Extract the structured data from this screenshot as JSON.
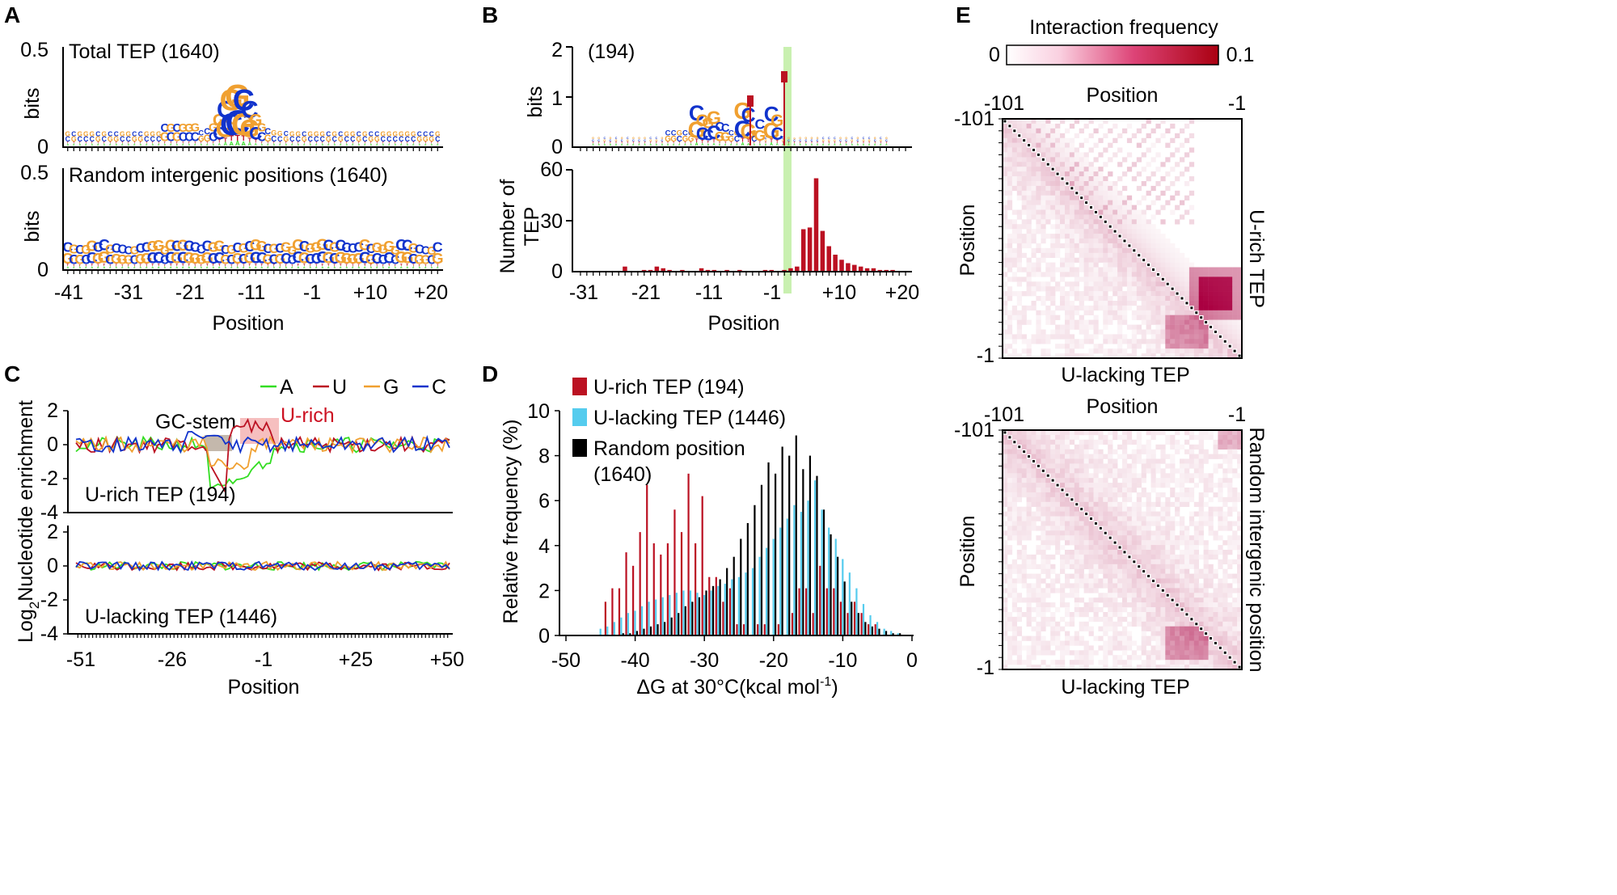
{
  "colors": {
    "A": "#33dd22",
    "U": "#bb1122",
    "G": "#f0a030",
    "C": "#1133cc",
    "green_hl": "#c9f0b0",
    "urich_box": "#f5b4b4",
    "gc_box": "#b0a090",
    "cyan": "#55ccee",
    "black": "#000000",
    "heat_hi": "#aa0011",
    "heat_lo": "#ffffff"
  },
  "chart_data": [
    {
      "panel": "A",
      "type": "sequence-logo",
      "ylabel": "bits",
      "xlabel": "Position",
      "x_ticks": [
        "-41",
        "-31",
        "-21",
        "-11",
        "-1",
        "+10",
        "+20"
      ],
      "subplots": [
        {
          "title": "Total TEP (1640)",
          "y_ticks": [
            "0.5",
            "0"
          ],
          "ylim": [
            0,
            0.5
          ]
        },
        {
          "title": "Random intergenic positions (1640)",
          "y_ticks": [
            "0.5",
            "0"
          ],
          "ylim": [
            0,
            0.5
          ]
        }
      ]
    },
    {
      "panel": "B",
      "type": "bar",
      "xlabel": "Position",
      "x_ticks": [
        "-31",
        "-21",
        "-11",
        "-1",
        "+10",
        "+20"
      ],
      "logo": {
        "title": "(194)",
        "ylabel": "bits",
        "y_ticks": [
          "2",
          "1",
          "0"
        ],
        "ylim": [
          0,
          2
        ]
      },
      "bars": {
        "ylabel_line1": "Number of",
        "ylabel_line2": "TEP",
        "y_ticks": [
          "60",
          "30",
          "0"
        ],
        "ylim": [
          0,
          60
        ],
        "x_start": -31,
        "x_end": 20,
        "values": [
          0,
          0,
          0,
          0,
          0,
          0,
          0,
          3,
          0,
          0,
          1,
          1,
          3,
          2,
          1,
          0,
          1,
          0,
          0,
          2,
          1,
          1,
          0,
          1,
          0,
          1,
          0,
          0,
          0,
          1,
          1,
          0,
          1,
          2,
          3,
          25,
          26,
          55,
          24,
          15,
          10,
          7,
          5,
          4,
          3,
          2,
          2,
          1,
          1,
          1,
          0,
          0
        ]
      }
    },
    {
      "panel": "C",
      "type": "line",
      "ylabel": "Log₂Nucleotide enrichment",
      "ylabel_main": "Log",
      "ylabel_sub": "2",
      "ylabel_rest": "Nucleotide enrichment",
      "xlabel": "Position",
      "x_ticks": [
        "-51",
        "-26",
        "-1",
        "+25",
        "+50"
      ],
      "y_ticks": [
        "2",
        "0",
        "-2",
        "-4"
      ],
      "ylim": [
        -4,
        2
      ],
      "legend": [
        {
          "key": "A",
          "label": "A"
        },
        {
          "key": "U",
          "label": "U"
        },
        {
          "key": "G",
          "label": "G"
        },
        {
          "key": "C",
          "label": "C"
        }
      ],
      "annotations": {
        "gc_stem": "GC-stem",
        "u_rich": "U-rich"
      },
      "subplots": [
        {
          "title": "U-rich TEP (194)"
        },
        {
          "title": "U-lacking TEP (1446)"
        }
      ]
    },
    {
      "panel": "D",
      "type": "bar",
      "xlabel": "ΔG at 30°C(kcal mol⁻¹)",
      "xlabel_main": "ΔG at 30°C(kcal mol",
      "xlabel_sup": "-1",
      "xlabel_end": ")",
      "ylabel": "Relative frequency (%)",
      "x_ticks": [
        "-50",
        "-40",
        "-30",
        "-20",
        "-10",
        "0"
      ],
      "y_ticks": [
        "10",
        "8",
        "6",
        "4",
        "2",
        "0"
      ],
      "xlim": [
        -50,
        0
      ],
      "ylim": [
        0,
        10
      ],
      "x": [
        -45,
        -44,
        -43,
        -42,
        -41,
        -40,
        -39,
        -38,
        -37,
        -36,
        -35,
        -34,
        -33,
        -32,
        -31,
        -30,
        -29,
        -28,
        -27,
        -26,
        -25,
        -24,
        -23,
        -22,
        -21,
        -20,
        -19,
        -18,
        -17,
        -16,
        -15,
        -14,
        -13,
        -12,
        -11,
        -10,
        -9,
        -8,
        -7,
        -6,
        -5,
        -4,
        -3,
        -2,
        -1
      ],
      "series": [
        {
          "name": "U-rich TEP (194)",
          "key": "urich",
          "values": [
            0,
            1.5,
            2.1,
            2.1,
            3.7,
            3.1,
            4.6,
            6.7,
            4.1,
            3.6,
            4.1,
            5.6,
            4.6,
            7.2,
            4.1,
            6.2,
            2.6,
            2.6,
            1.5,
            2.1,
            0.5,
            0.5,
            0,
            0.5,
            0.5,
            0,
            0.5,
            0,
            1.0,
            2.1,
            2.1,
            1.0,
            3.1,
            2.1,
            2.1,
            1.5,
            1.0,
            1.5,
            1.0,
            0.5,
            0.5,
            0,
            0,
            0,
            0
          ]
        },
        {
          "name": "U-lacking TEP (1446)",
          "key": "ulacking",
          "values": [
            0.3,
            0.4,
            0.6,
            0.8,
            1.0,
            1.1,
            1.3,
            1.5,
            1.6,
            1.7,
            1.8,
            1.9,
            2.0,
            2.0,
            1.9,
            1.8,
            2.0,
            2.2,
            2.3,
            2.5,
            2.6,
            2.8,
            3.0,
            3.5,
            3.9,
            4.3,
            4.8,
            5.2,
            5.8,
            5.5,
            6.0,
            6.9,
            5.6,
            4.8,
            4.3,
            3.4,
            2.8,
            2.1,
            1.4,
            0.9,
            0.6,
            0.3,
            0.2,
            0.1,
            0
          ]
        },
        {
          "name": "Random position (1640)",
          "key": "random",
          "values": [
            0,
            0,
            0,
            0.1,
            0.1,
            0.2,
            0.3,
            0.4,
            0.5,
            0.6,
            0.8,
            1.0,
            1.3,
            1.5,
            1.7,
            2.0,
            2.2,
            2.5,
            3.0,
            3.5,
            4.3,
            5.0,
            5.8,
            6.7,
            7.7,
            7.2,
            8.4,
            8.0,
            8.9,
            7.4,
            8.0,
            7.1,
            5.6,
            4.5,
            3.5,
            2.4,
            1.5,
            1.0,
            0.6,
            0.4,
            0.3,
            0.2,
            0.1,
            0.1,
            0
          ]
        }
      ],
      "legend_lines": [
        "U-rich TEP (194)",
        "U-lacking TEP (1446)",
        "Random position",
        "(1640)"
      ]
    },
    {
      "panel": "E",
      "type": "heatmap",
      "colorbar": {
        "title": "Interaction frequency",
        "min_label": "0",
        "max_label": "0.1",
        "range": [
          0,
          0.1
        ]
      },
      "x_ticks": [
        "-101",
        "-1"
      ],
      "y_ticks": [
        "-101",
        "-1"
      ],
      "subplots": [
        {
          "top_label": "Position",
          "bottom_label": "U-lacking TEP",
          "left_label": "Position",
          "right_label": "U-rich TEP"
        },
        {
          "top_label": "Position",
          "bottom_label": "U-lacking TEP",
          "left_label": "Position",
          "right_label": "Random intergenic position"
        }
      ]
    }
  ],
  "panel_letters": [
    "A",
    "B",
    "C",
    "D",
    "E"
  ]
}
